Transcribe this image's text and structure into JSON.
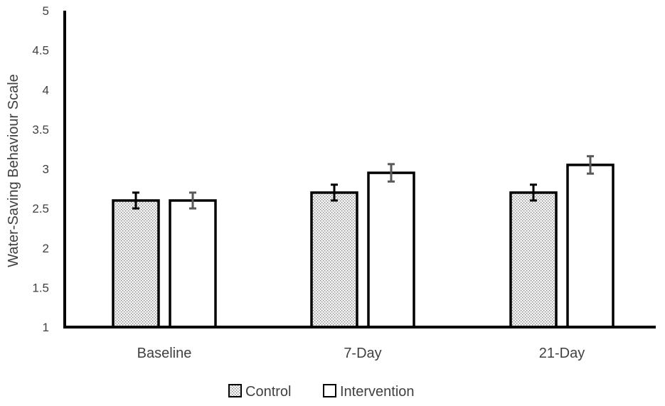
{
  "chart_data": {
    "type": "bar",
    "title": "",
    "xlabel": "",
    "ylabel": "Water-Saving Behaviour Scale",
    "ylim": [
      1,
      5
    ],
    "yticks": [
      "1",
      "1.5",
      "2",
      "2.5",
      "3",
      "3.5",
      "4",
      "4.5",
      "5"
    ],
    "categories": [
      "Baseline",
      "7-Day",
      "21-Day"
    ],
    "series": [
      {
        "name": "Control",
        "values": [
          2.6,
          2.7,
          2.7
        ],
        "error": [
          0.1,
          0.1,
          0.1
        ],
        "pattern": "dotted",
        "fill": "#d9d9d9"
      },
      {
        "name": "Intervention",
        "values": [
          2.6,
          2.95,
          3.05
        ],
        "error": [
          0.1,
          0.11,
          0.11
        ],
        "pattern": "none",
        "fill": "#ffffff"
      }
    ],
    "legend_position": "bottom-center",
    "grid": false,
    "colors": {
      "axis": "#000000",
      "bar_border": "#000000",
      "error_bar": "#595959",
      "text": "#404040"
    }
  }
}
